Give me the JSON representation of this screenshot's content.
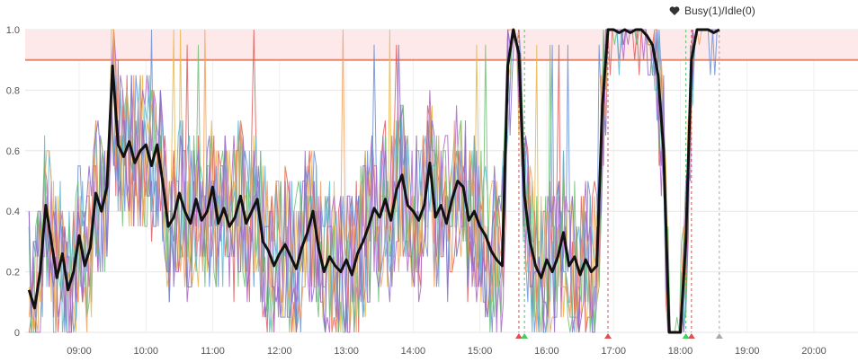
{
  "legend": {
    "label": "Busy(1)/Idle(0)",
    "icon": "heart-icon"
  },
  "chart_data": {
    "type": "line",
    "legend_placement": "top-right",
    "grid": true,
    "xlim": [
      "08:15",
      "20:40"
    ],
    "ylim": [
      0,
      1.0
    ],
    "x_ticks": [
      "09:00",
      "10:00",
      "11:00",
      "12:00",
      "13:00",
      "14:00",
      "15:00",
      "16:00",
      "17:00",
      "18:00",
      "19:00",
      "20:00"
    ],
    "y_ticks": [
      "0",
      "0.2",
      "0.4",
      "0.6",
      "0.8",
      "1.0"
    ],
    "threshold": {
      "value": 0.9,
      "band_from": 0.9,
      "band_to": 1.0,
      "color": "#e8866a",
      "band_color": "#fde9e9"
    },
    "series": [
      {
        "name": "Busy(1)/Idle(0)",
        "color": "#111111",
        "points": [
          [
            "08:15",
            0.14
          ],
          [
            "08:20",
            0.08
          ],
          [
            "08:25",
            0.2
          ],
          [
            "08:30",
            0.42
          ],
          [
            "08:35",
            0.3
          ],
          [
            "08:40",
            0.18
          ],
          [
            "08:45",
            0.26
          ],
          [
            "08:50",
            0.14
          ],
          [
            "08:55",
            0.2
          ],
          [
            "09:00",
            0.32
          ],
          [
            "09:05",
            0.22
          ],
          [
            "09:10",
            0.28
          ],
          [
            "09:15",
            0.46
          ],
          [
            "09:20",
            0.4
          ],
          [
            "09:25",
            0.48
          ],
          [
            "09:30",
            0.88
          ],
          [
            "09:35",
            0.62
          ],
          [
            "09:40",
            0.58
          ],
          [
            "09:45",
            0.63
          ],
          [
            "09:50",
            0.56
          ],
          [
            "09:55",
            0.6
          ],
          [
            "10:00",
            0.62
          ],
          [
            "10:05",
            0.55
          ],
          [
            "10:10",
            0.62
          ],
          [
            "10:15",
            0.5
          ],
          [
            "10:20",
            0.35
          ],
          [
            "10:25",
            0.38
          ],
          [
            "10:30",
            0.46
          ],
          [
            "10:35",
            0.4
          ],
          [
            "10:40",
            0.36
          ],
          [
            "10:45",
            0.44
          ],
          [
            "10:50",
            0.37
          ],
          [
            "10:55",
            0.4
          ],
          [
            "11:00",
            0.48
          ],
          [
            "11:05",
            0.36
          ],
          [
            "11:10",
            0.41
          ],
          [
            "11:15",
            0.35
          ],
          [
            "11:20",
            0.38
          ],
          [
            "11:25",
            0.45
          ],
          [
            "11:30",
            0.36
          ],
          [
            "11:35",
            0.4
          ],
          [
            "11:40",
            0.44
          ],
          [
            "11:45",
            0.3
          ],
          [
            "11:50",
            0.27
          ],
          [
            "11:55",
            0.22
          ],
          [
            "12:00",
            0.26
          ],
          [
            "12:05",
            0.29
          ],
          [
            "12:10",
            0.25
          ],
          [
            "12:15",
            0.21
          ],
          [
            "12:20",
            0.28
          ],
          [
            "12:25",
            0.33
          ],
          [
            "12:30",
            0.4
          ],
          [
            "12:35",
            0.28
          ],
          [
            "12:40",
            0.2
          ],
          [
            "12:45",
            0.25
          ],
          [
            "12:50",
            0.22
          ],
          [
            "12:55",
            0.2
          ],
          [
            "13:00",
            0.24
          ],
          [
            "13:05",
            0.19
          ],
          [
            "13:10",
            0.26
          ],
          [
            "13:15",
            0.3
          ],
          [
            "13:20",
            0.35
          ],
          [
            "13:25",
            0.41
          ],
          [
            "13:30",
            0.38
          ],
          [
            "13:35",
            0.44
          ],
          [
            "13:40",
            0.37
          ],
          [
            "13:45",
            0.47
          ],
          [
            "13:50",
            0.52
          ],
          [
            "13:55",
            0.42
          ],
          [
            "14:00",
            0.4
          ],
          [
            "14:05",
            0.37
          ],
          [
            "14:10",
            0.42
          ],
          [
            "14:15",
            0.56
          ],
          [
            "14:20",
            0.38
          ],
          [
            "14:25",
            0.42
          ],
          [
            "14:30",
            0.36
          ],
          [
            "14:35",
            0.44
          ],
          [
            "14:40",
            0.5
          ],
          [
            "14:45",
            0.48
          ],
          [
            "14:50",
            0.37
          ],
          [
            "14:55",
            0.4
          ],
          [
            "15:00",
            0.35
          ],
          [
            "15:05",
            0.32
          ],
          [
            "15:10",
            0.27
          ],
          [
            "15:15",
            0.24
          ],
          [
            "15:20",
            0.22
          ],
          [
            "15:25",
            0.88
          ],
          [
            "15:30",
            1.0
          ],
          [
            "15:35",
            0.92
          ],
          [
            "15:40",
            0.45
          ],
          [
            "15:45",
            0.3
          ],
          [
            "15:50",
            0.22
          ],
          [
            "15:55",
            0.18
          ],
          [
            "16:00",
            0.24
          ],
          [
            "16:05",
            0.2
          ],
          [
            "16:10",
            0.25
          ],
          [
            "16:15",
            0.33
          ],
          [
            "16:20",
            0.22
          ],
          [
            "16:25",
            0.25
          ],
          [
            "16:30",
            0.19
          ],
          [
            "16:35",
            0.24
          ],
          [
            "16:40",
            0.2
          ],
          [
            "16:45",
            0.22
          ],
          [
            "16:50",
            0.75
          ],
          [
            "16:55",
            1.0
          ],
          [
            "17:00",
            1.0
          ],
          [
            "17:05",
            0.99
          ],
          [
            "17:10",
            1.0
          ],
          [
            "17:15",
            0.99
          ],
          [
            "17:20",
            1.0
          ],
          [
            "17:25",
            1.0
          ],
          [
            "17:30",
            0.98
          ],
          [
            "17:35",
            0.95
          ],
          [
            "17:40",
            0.85
          ],
          [
            "17:45",
            0.6
          ],
          [
            "17:50",
            0.0
          ],
          [
            "17:55",
            0.0
          ],
          [
            "18:00",
            0.0
          ],
          [
            "18:05",
            0.3
          ],
          [
            "18:10",
            0.9
          ],
          [
            "18:15",
            1.0
          ],
          [
            "18:20",
            1.0
          ],
          [
            "18:25",
            1.0
          ],
          [
            "18:30",
            0.99
          ],
          [
            "18:35",
            1.0
          ]
        ]
      }
    ],
    "noise_series_colors": [
      "#e8b84a",
      "#e05a5a",
      "#6a8fd8",
      "#59b8d0",
      "#b062c8",
      "#6fbf73",
      "#f0a060",
      "#8b6bc8"
    ],
    "event_markers": [
      {
        "x": "15:35",
        "color": "#e05050",
        "line": true
      },
      {
        "x": "15:40",
        "color": "#40d060",
        "line": true
      },
      {
        "x": "16:55",
        "color": "#e05050",
        "line": true
      },
      {
        "x": "18:05",
        "color": "#40d060",
        "line": true
      },
      {
        "x": "18:10",
        "color": "#e05050",
        "line": true
      },
      {
        "x": "18:35",
        "color": "#aaaaaa",
        "line": true
      }
    ]
  }
}
